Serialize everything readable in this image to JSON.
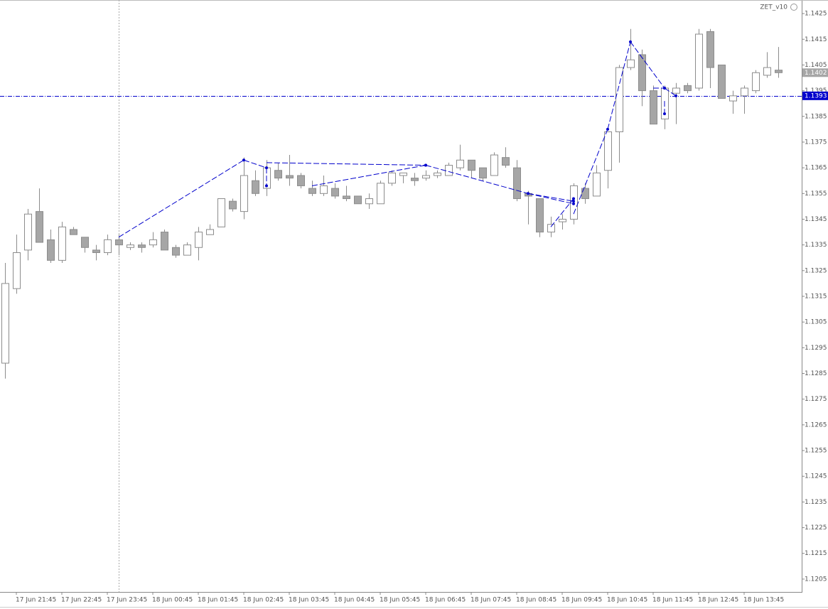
{
  "chart_data": {
    "type": "candlestick",
    "indicator": "ZET_v10",
    "categories": [
      null,
      "17 Jun 21:45",
      null,
      null,
      null,
      "17 Jun 22:45",
      null,
      null,
      null,
      "17 Jun 23:45",
      null,
      null,
      null,
      "18 Jun 00:45",
      null,
      null,
      null,
      "18 Jun 01:45",
      null,
      null,
      null,
      "18 Jun 02:45",
      null,
      null,
      null,
      "18 Jun 03:45",
      null,
      null,
      null,
      "18 Jun 04:45",
      null,
      null,
      null,
      "18 Jun 05:45",
      null,
      null,
      null,
      "18 Jun 06:45",
      null,
      null,
      null,
      "18 Jun 07:45",
      null,
      null,
      null,
      "18 Jun 08:45",
      null,
      null,
      null,
      "18 Jun 09:45",
      null,
      null,
      null,
      "18 Jun 10:45",
      null,
      null,
      null,
      "18 Jun 11:45",
      null,
      null,
      null,
      "18 Jun 12:45",
      null,
      null,
      null,
      "18 Jun 13:45",
      null,
      null,
      null
    ],
    "open": [
      1.1289,
      1.1318,
      1.1333,
      1.1348,
      1.1337,
      1.1329,
      1.1341,
      1.1338,
      1.1333,
      1.1332,
      1.1337,
      1.1334,
      1.1335,
      1.1335,
      1.134,
      1.1334,
      1.1331,
      1.1334,
      1.1339,
      1.1342,
      1.1352,
      1.1348,
      1.136,
      1.1357,
      1.1364,
      1.1362,
      1.1362,
      1.1357,
      1.1355,
      1.1357,
      1.1354,
      1.1354,
      1.1351,
      1.1351,
      1.1359,
      1.1362,
      1.1361,
      1.1361,
      1.1362,
      1.1362,
      1.1365,
      1.1368,
      1.1365,
      1.1362,
      1.1369,
      1.1365,
      1.1355,
      1.1353,
      1.134,
      1.1344,
      1.1345,
      1.1357,
      1.1354,
      1.1364,
      1.1379,
      1.1404,
      1.1409,
      1.1395,
      1.1384,
      1.1394,
      1.1397,
      1.1396,
      1.1418,
      1.1405,
      1.1391,
      1.1393,
      1.1395,
      1.1401,
      1.1403
    ],
    "high": [
      1.1328,
      1.1339,
      1.1349,
      1.1357,
      1.1341,
      1.1344,
      1.1342,
      1.1338,
      1.1335,
      1.1339,
      1.1339,
      1.1336,
      1.1336,
      1.134,
      1.1341,
      1.1335,
      1.1336,
      1.1342,
      1.1343,
      1.1353,
      1.1353,
      1.1369,
      1.1364,
      1.1368,
      1.1367,
      1.137,
      1.1363,
      1.136,
      1.1362,
      1.1359,
      1.1358,
      1.1354,
      1.1355,
      1.136,
      1.1364,
      1.1363,
      1.1363,
      1.1364,
      1.1364,
      1.1367,
      1.1374,
      1.1368,
      1.1365,
      1.1371,
      1.1373,
      1.1368,
      1.1356,
      1.1353,
      1.1346,
      1.1347,
      1.1359,
      1.1359,
      1.1366,
      1.1379,
      1.1405,
      1.1419,
      1.1411,
      1.1397,
      1.1397,
      1.1398,
      1.1398,
      1.1419,
      1.1419,
      1.1405,
      1.1395,
      1.1397,
      1.1403,
      1.141,
      1.1412
    ],
    "low": [
      1.1283,
      1.1316,
      1.1329,
      1.1336,
      1.1328,
      1.1328,
      1.1339,
      1.1332,
      1.1329,
      1.1331,
      1.1331,
      1.1333,
      1.1332,
      1.1334,
      1.1333,
      1.133,
      1.1331,
      1.1329,
      1.1339,
      1.1342,
      1.1348,
      1.1345,
      1.1354,
      1.1354,
      1.136,
      1.1358,
      1.1357,
      1.1354,
      1.1354,
      1.1353,
      1.1352,
      1.1351,
      1.1349,
      1.1351,
      1.1358,
      1.1359,
      1.1358,
      1.136,
      1.1361,
      1.1362,
      1.1364,
      1.1361,
      1.136,
      1.1362,
      1.1365,
      1.1352,
      1.1343,
      1.1338,
      1.1338,
      1.1341,
      1.1343,
      1.1351,
      1.1354,
      1.1357,
      1.1367,
      1.1403,
      1.1389,
      1.1382,
      1.138,
      1.1382,
      1.1394,
      1.1395,
      1.1396,
      1.1392,
      1.1386,
      1.1386,
      1.1394,
      1.14,
      1.14
    ],
    "close": [
      1.132,
      1.1332,
      1.1347,
      1.1336,
      1.1329,
      1.1342,
      1.1339,
      1.1334,
      1.1332,
      1.1337,
      1.1335,
      1.1335,
      1.1334,
      1.1337,
      1.1333,
      1.1331,
      1.1335,
      1.134,
      1.1341,
      1.1353,
      1.1349,
      1.1362,
      1.1355,
      1.1365,
      1.1361,
      1.1361,
      1.1358,
      1.1355,
      1.1358,
      1.1354,
      1.1353,
      1.1351,
      1.1353,
      1.1359,
      1.1363,
      1.1363,
      1.136,
      1.1362,
      1.1363,
      1.1366,
      1.1368,
      1.1364,
      1.1361,
      1.137,
      1.1366,
      1.1353,
      1.1354,
      1.134,
      1.1343,
      1.1345,
      1.1358,
      1.1353,
      1.1363,
      1.1379,
      1.1404,
      1.1407,
      1.1395,
      1.1382,
      1.1396,
      1.1396,
      1.1395,
      1.1417,
      1.1404,
      1.1392,
      1.1393,
      1.1396,
      1.1402,
      1.1404,
      1.1402
    ],
    "up_color": "#ffffff",
    "down_color": "#a6a6a6",
    "wick_color": "#8c8c8c",
    "ylim": [
      1.12,
      1.143
    ],
    "yticks": [
      1.1205,
      1.1215,
      1.1225,
      1.1235,
      1.1245,
      1.1255,
      1.1265,
      1.1275,
      1.1285,
      1.1295,
      1.1305,
      1.1315,
      1.1325,
      1.1335,
      1.1345,
      1.1355,
      1.1365,
      1.1375,
      1.1385,
      1.1395,
      1.1405,
      1.1415,
      1.1425
    ],
    "hline": {
      "value": 1.1393,
      "color": "#0000cc"
    },
    "last_price": {
      "value": 1.1402,
      "color": "#a6a6a6"
    },
    "period_separator": 10,
    "zigzag_color": "#0000cc",
    "zigzag": [
      {
        "x": [
          10,
          21
        ],
        "y": [
          1.1338,
          1.1368
        ]
      },
      {
        "x": [
          21,
          23
        ],
        "y": [
          1.1368,
          1.1365
        ]
      },
      {
        "x": [
          23,
          37
        ],
        "y": [
          1.1367,
          1.1366
        ]
      },
      {
        "x": [
          23,
          23
        ],
        "y": [
          1.1365,
          1.1358
        ]
      },
      {
        "x": [
          27,
          37
        ],
        "y": [
          1.1358,
          1.1366
        ]
      },
      {
        "x": [
          37,
          46
        ],
        "y": [
          1.1366,
          1.1355
        ]
      },
      {
        "x": [
          46,
          50
        ],
        "y": [
          1.1355,
          1.1352
        ]
      },
      {
        "x": [
          46,
          50
        ],
        "y": [
          1.1355,
          1.1351
        ]
      },
      {
        "x": [
          48,
          50
        ],
        "y": [
          1.1342,
          1.1353
        ]
      },
      {
        "x": [
          50,
          53
        ],
        "y": [
          1.1347,
          1.138
        ]
      },
      {
        "x": [
          53,
          55
        ],
        "y": [
          1.138,
          1.1414
        ]
      },
      {
        "x": [
          55,
          58
        ],
        "y": [
          1.1414,
          1.1396
        ]
      },
      {
        "x": [
          57,
          58
        ],
        "y": [
          1.1396,
          1.1396
        ]
      },
      {
        "x": [
          58,
          59
        ],
        "y": [
          1.1396,
          1.1393
        ]
      },
      {
        "x": [
          58,
          58
        ],
        "y": [
          1.1391,
          1.1386
        ]
      }
    ]
  }
}
